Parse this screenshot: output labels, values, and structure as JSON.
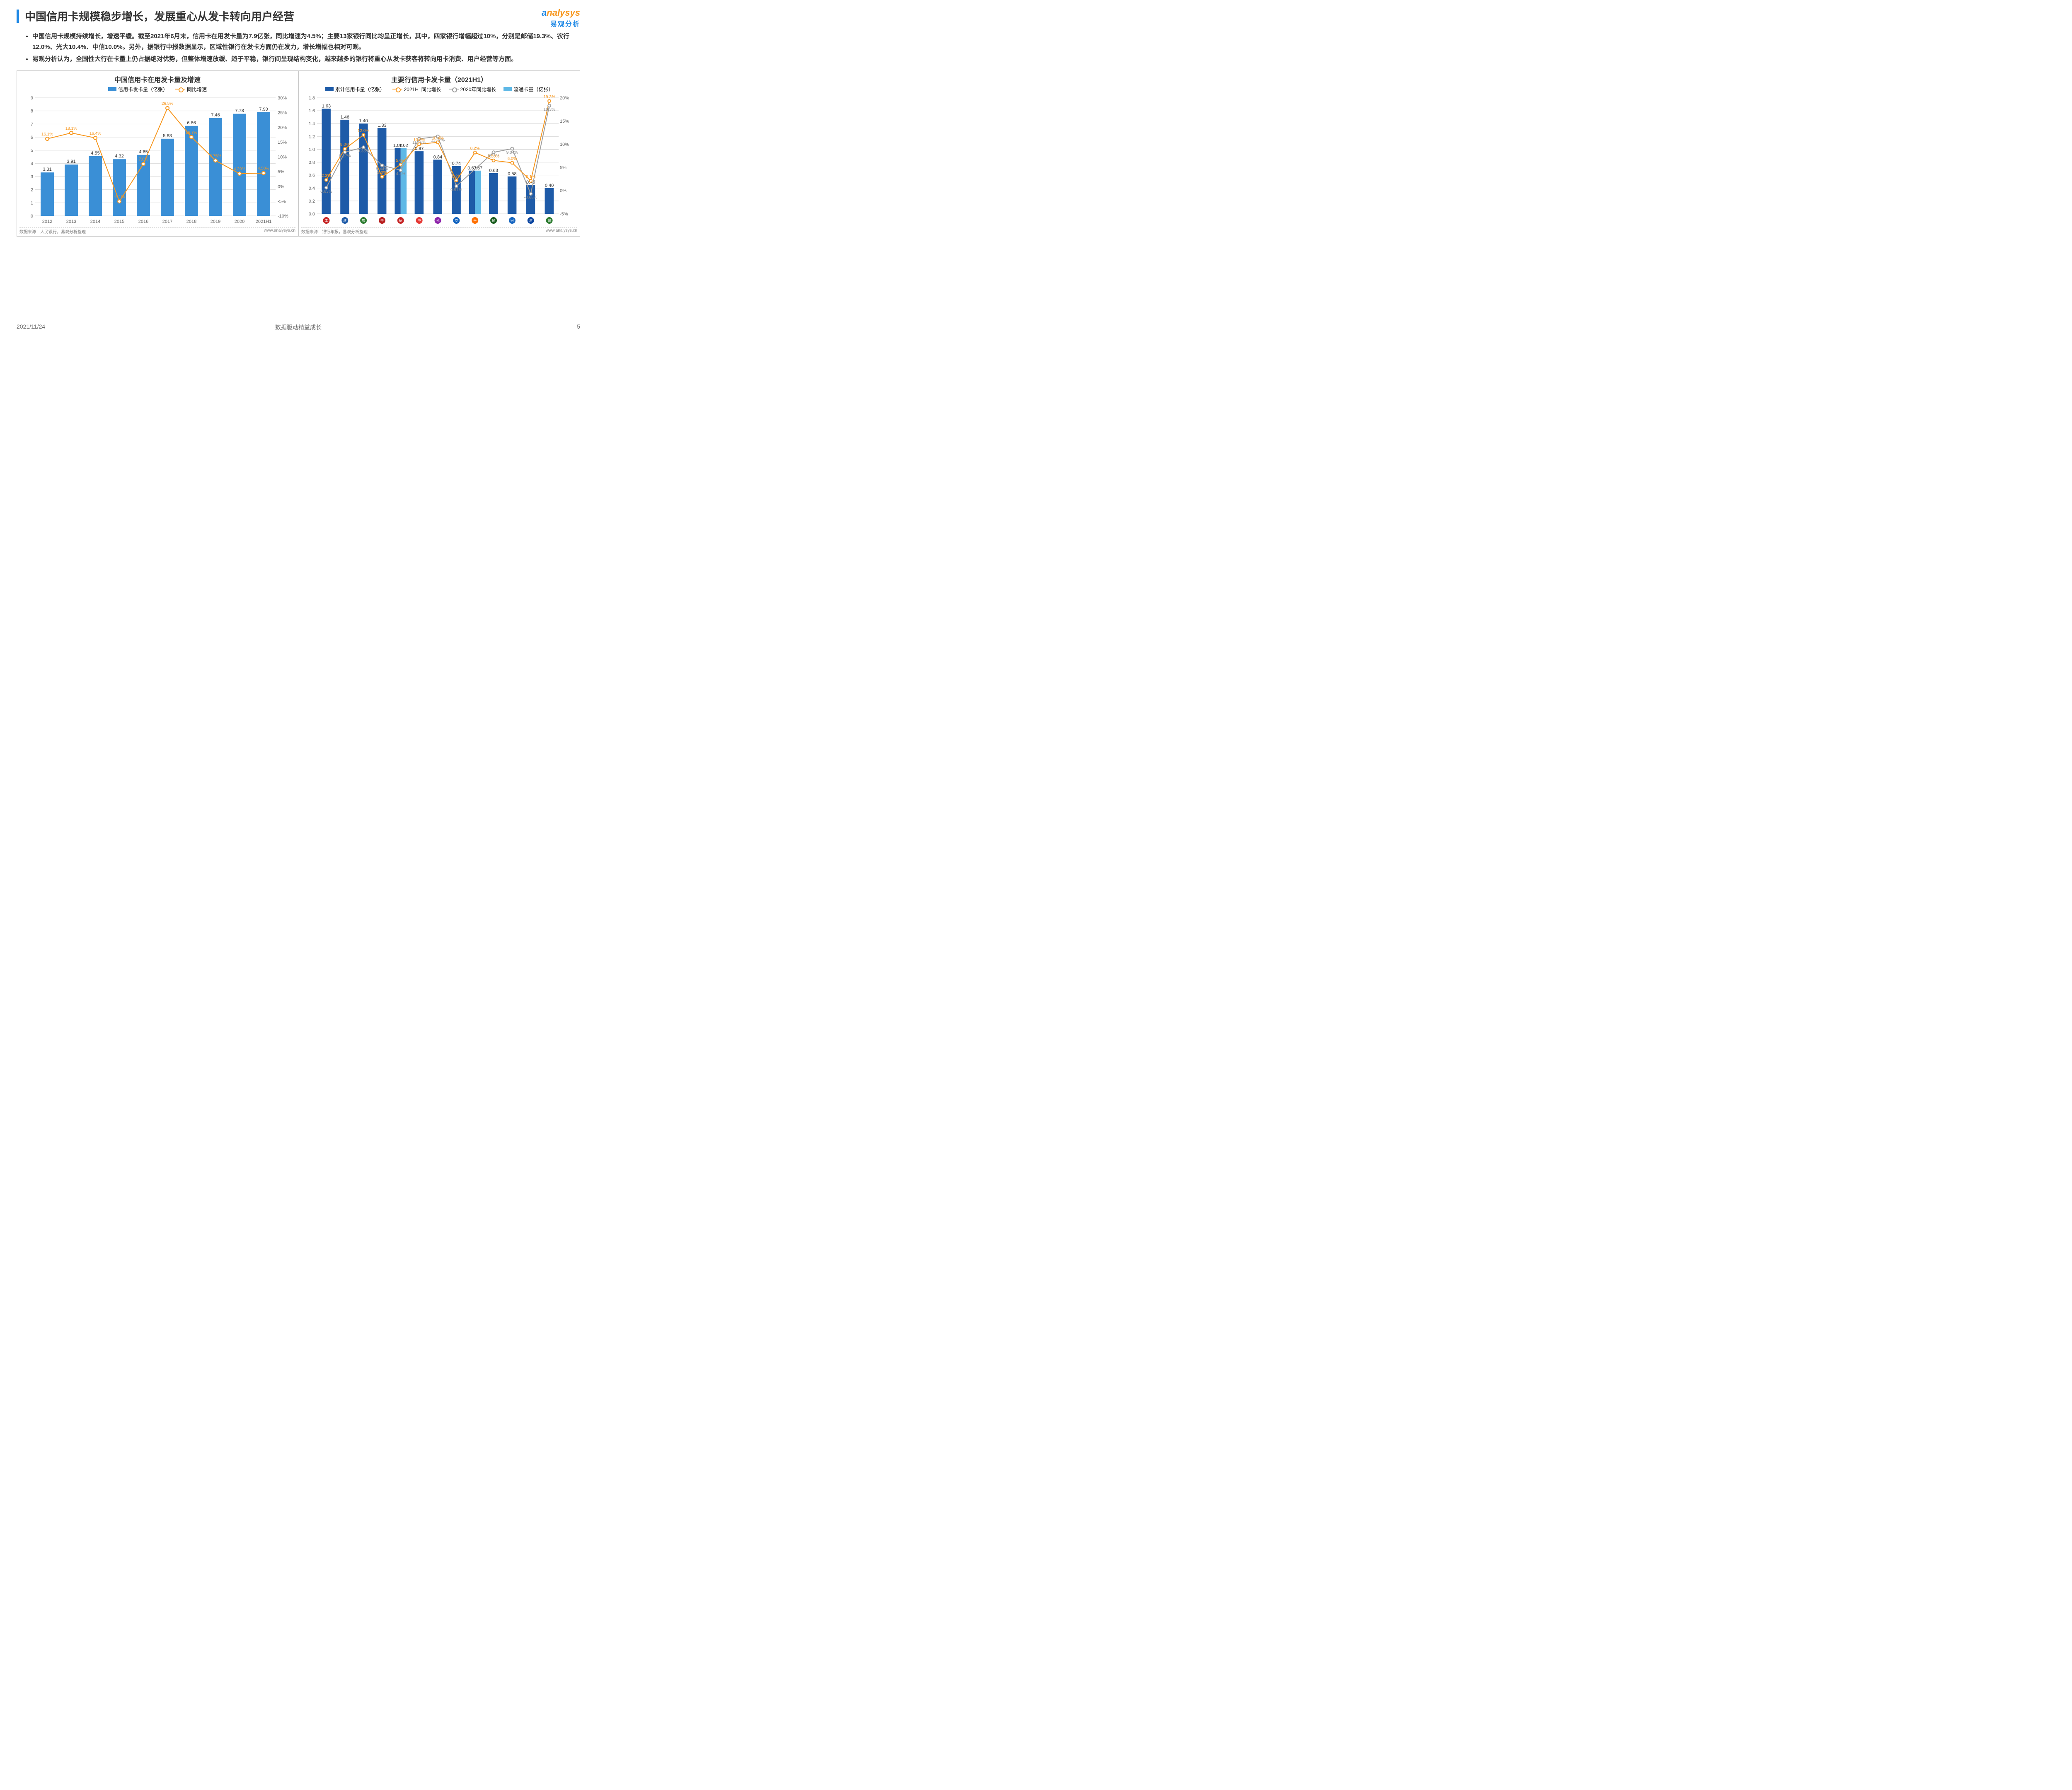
{
  "header": {
    "title": "中国信用卡规模稳步增长，发展重心从发卡转向用户经营",
    "logo_top_a": "a",
    "logo_top_rest": "nalysys",
    "logo_sub": "易观分析"
  },
  "bullets": [
    "中国信用卡规模持续增长，增速平缓。截至2021年6月末，信用卡在用发卡量为7.9亿张，同比增速为4.5%；主要13家银行同比均呈正增长，其中，四家银行增幅超过10%，分别是邮储19.3%、农行12.0%、光大10.4%、中信10.0%。另外，据银行中报数据显示，区域性银行在发卡方面仍在发力，增长增幅也相对可观。",
    "易观分析认为，全国性大行在卡量上仍占据绝对优势，但整体增速放缓、趋于平稳，银行间呈现结构变化，越来越多的银行将重心从发卡获客将转向用卡消费、用户经营等方面。"
  ],
  "chart1": {
    "type": "bar+line",
    "title": "中国信用卡在用发卡量及增速",
    "legend_bar": "信用卡发卡量（亿张）",
    "legend_line": "同比增速",
    "categories": [
      "2012",
      "2013",
      "2014",
      "2015",
      "2016",
      "2017",
      "2018",
      "2019",
      "2020",
      "2021H1"
    ],
    "bar_values": [
      3.31,
      3.91,
      4.55,
      4.32,
      4.65,
      5.88,
      6.86,
      7.46,
      7.78,
      7.9
    ],
    "line_values": [
      16.1,
      18.1,
      16.4,
      -5.1,
      7.6,
      26.5,
      16.7,
      8.75,
      4.29,
      4.5
    ],
    "line_labels": [
      "16.1%",
      "18.1%",
      "16.4%",
      "-5.1%",
      "7.6%",
      "26.5%",
      "16.7%",
      "8.75%",
      "4.29%",
      "4.50%"
    ],
    "y1_min": 0,
    "y1_max": 9,
    "y1_step": 1,
    "y2_min": -10,
    "y2_max": 30,
    "y2_step": 5,
    "bar_color": "#3a8fd6",
    "line_color": "#f7971e",
    "marker_fill": "#ffffff",
    "grid_color": "#d9d9d9",
    "source": "数据来源：人民银行，易观分析整理",
    "url": "www.analysys.cn"
  },
  "chart2": {
    "type": "grouped-bar+2line",
    "title": "主要行信用卡发卡量（2021H1）",
    "legend_bar1": "累计信用卡量（亿张）",
    "legend_bar2": "流通卡量（亿张）",
    "legend_line1": "2021H1同比增长",
    "legend_line2": "2020年同比增长",
    "banks": [
      "工商",
      "建设",
      "农业",
      "中国",
      "招商",
      "中信",
      "光大",
      "交通",
      "平安",
      "民生",
      "兴业",
      "浦发",
      "邮储"
    ],
    "bank_colors": [
      "#c62828",
      "#1e5ba8",
      "#2e7d32",
      "#b71c1c",
      "#c62828",
      "#e53935",
      "#8e24aa",
      "#1565c0",
      "#ff6f00",
      "#1b5e20",
      "#1565c0",
      "#0d47a1",
      "#2e7d32"
    ],
    "bar1_values": [
      1.63,
      1.46,
      1.4,
      1.33,
      1.02,
      0.97,
      0.84,
      0.74,
      0.67,
      0.63,
      0.58,
      0.45,
      0.4
    ],
    "bar2_values": [
      null,
      null,
      null,
      null,
      1.02,
      null,
      null,
      null,
      0.67,
      null,
      null,
      null,
      null
    ],
    "line1_values": [
      2.3,
      9.0,
      12.0,
      3.0,
      5.6,
      10.0,
      10.4,
      2.2,
      8.2,
      6.5,
      6.0,
      2.1,
      19.3
    ],
    "line1_labels": [
      "2.3%",
      "9.0%",
      "12.0%",
      "3.0%",
      "5.6%",
      "10.0%",
      "10.4%",
      "2.2%",
      "8.2%",
      "6.50%",
      "6.0%",
      "2.1%",
      "19.3%"
    ],
    "line2_values": [
      0.63,
      8.27,
      9.33,
      5.44,
      4.4,
      11.16,
      11.67,
      0.97,
      null,
      8.25,
      9.04,
      -0.68,
      18.3
    ],
    "line2_labels": [
      "0.63%",
      "8.27%",
      "9.33%",
      "5.44%",
      "4.4%",
      "11.16%",
      "11.67%",
      "0.97%",
      "",
      "8.25%",
      "9.04%",
      "-0.68%",
      "18.3%"
    ],
    "y1_min": 0.0,
    "y1_max": 1.8,
    "y1_step": 0.2,
    "y2_min": -5,
    "y2_max": 20,
    "y2_step": 5,
    "bar1_color": "#1e5ba8",
    "bar2_color": "#5eb8e6",
    "line1_color": "#f7971e",
    "line2_color": "#9e9e9e",
    "marker_fill": "#ffffff",
    "grid_color": "#d9d9d9",
    "source": "数据来源：银行年报，易观分析整理",
    "url": "www.analysys.cn"
  },
  "footer": {
    "date": "2021/11/24",
    "center": "数据驱动精益成长",
    "page": "5"
  },
  "watermark": "analysys 易观分析"
}
